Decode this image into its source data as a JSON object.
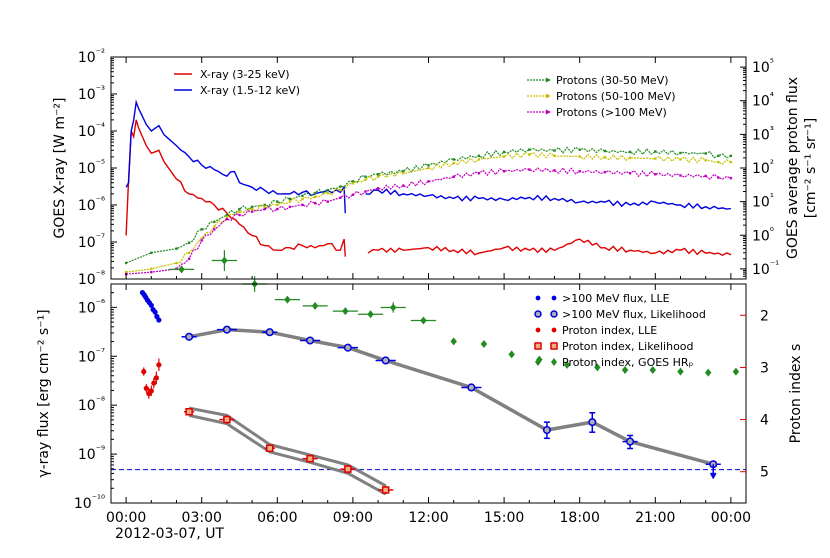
{
  "chart_data": [
    {
      "type": "line",
      "panel": "top",
      "ylabel": "GOES X-ray [W m⁻²]",
      "ylabel_right_line1": "GOES average proton flux",
      "ylabel_right_line2": "[cm⁻² s⁻¹ sr⁻¹]",
      "yscale": "log",
      "ylim": [
        1e-08,
        0.01
      ],
      "y2lim": [
        0.05,
        200000
      ],
      "left_ticks": [
        "10⁻⁸",
        "10⁻⁷",
        "10⁻⁶",
        "10⁻⁵",
        "10⁻⁴",
        "10⁻³",
        "10⁻²"
      ],
      "left_tick_exp": [
        -8,
        -7,
        -6,
        -5,
        -4,
        -3,
        -2
      ],
      "right_ticks": [
        "10⁻¹",
        "10⁰",
        "10¹",
        "10²",
        "10³",
        "10⁴",
        "10⁵"
      ],
      "right_tick_exp": [
        -1,
        0,
        1,
        2,
        3,
        4,
        5
      ],
      "legend_left": [
        "X-ray (3-25 keV)",
        "X-ray (1.5-12 keV)"
      ],
      "legend_right": [
        "Protons (30-50 MeV)",
        "Protons (50-100 MeV)",
        "Protons (>100 MeV)"
      ],
      "series": [
        {
          "name": "X-ray (3-25 keV)",
          "color": "#e00000",
          "axis": "left",
          "x": [
            0,
            0.1,
            0.2,
            0.3,
            0.4,
            0.5,
            0.8,
            1,
            1.3,
            1.5,
            2,
            2.5,
            3,
            3.5,
            4,
            4.5,
            5,
            5.5,
            6,
            6.5,
            7,
            7.5,
            8,
            8.5,
            8.65,
            8.7,
            8.75,
            9,
            9.6,
            10,
            11,
            12,
            13,
            14,
            15,
            16,
            17,
            18,
            19,
            20,
            21,
            22,
            23,
            23.5,
            24
          ],
          "y": [
            1.5e-07,
            5e-06,
            0.0001,
            7e-05,
            0.0002,
            0.00012,
            4e-05,
            2.5e-05,
            3e-05,
            1.5e-05,
            5e-06,
            2e-06,
            1.5e-06,
            1e-06,
            6e-07,
            3e-07,
            1.5e-07,
            8e-08,
            6e-08,
            7e-08,
            8e-08,
            7e-08,
            9e-08,
            6e-08,
            1.2e-07,
            4e-08,
            null,
            null,
            5e-08,
            6e-08,
            6e-08,
            7e-08,
            6e-08,
            5e-08,
            7e-08,
            6e-08,
            6e-08,
            1.2e-07,
            7e-08,
            6e-08,
            5e-08,
            6e-08,
            5e-08,
            5e-08,
            4.5e-08
          ]
        },
        {
          "name": "X-ray (1.5-12 keV)",
          "color": "#0000e0",
          "axis": "left",
          "x": [
            0,
            0.1,
            0.2,
            0.3,
            0.4,
            0.5,
            0.8,
            1,
            1.3,
            1.5,
            2,
            2.5,
            3,
            3.5,
            4,
            4.3,
            4.5,
            5,
            5.5,
            6,
            6.5,
            7,
            7.5,
            8,
            8.5,
            8.65,
            8.7,
            8.75,
            9,
            9.5,
            10,
            11,
            12,
            13,
            14,
            15,
            16,
            17,
            18,
            19,
            20,
            21,
            22,
            23,
            23.5,
            24
          ],
          "y": [
            3e-06,
            4e-06,
            0.0001,
            0.0002,
            0.0006,
            0.0004,
            0.00015,
            0.0001,
            0.00014,
            8e-05,
            4e-05,
            2e-05,
            1.2e-05,
            9e-06,
            6e-06,
            8e-06,
            4e-06,
            3e-06,
            2.5e-06,
            2e-06,
            2e-06,
            2.2e-06,
            2e-06,
            2.5e-06,
            2.2e-06,
            3e-06,
            6e-07,
            null,
            null,
            2e-06,
            2.5e-06,
            2e-06,
            1.8e-06,
            1.5e-06,
            1.5e-06,
            1.4e-06,
            1.6e-06,
            1.5e-06,
            1.2e-06,
            1.2e-06,
            1e-06,
            1.2e-06,
            1e-06,
            9e-07,
            8e-07,
            8e-07
          ]
        },
        {
          "name": "Protons (30-50 MeV)",
          "color": "#228b22",
          "axis": "right",
          "x": [
            0,
            1,
            2,
            2.5,
            3,
            3.5,
            4,
            4.5,
            5,
            5.5,
            6,
            6.5,
            7,
            7.5,
            8,
            8.5,
            9,
            9.5,
            10,
            11,
            12,
            13,
            14,
            15,
            16,
            17,
            18,
            19,
            20,
            21,
            22,
            23,
            23.5,
            24
          ],
          "y": [
            0.15,
            0.3,
            0.4,
            0.6,
            1.5,
            2.5,
            4,
            6,
            7,
            8,
            10,
            12,
            15,
            18,
            22,
            28,
            40,
            55,
            65,
            80,
            120,
            180,
            230,
            300,
            350,
            330,
            350,
            320,
            300,
            310,
            280,
            270,
            230,
            230
          ]
        },
        {
          "name": "Protons (50-100 MeV)",
          "color": "#c8c000",
          "axis": "right",
          "x": [
            0,
            1,
            2,
            2.5,
            3,
            3.5,
            4,
            4.5,
            5,
            5.5,
            6,
            6.5,
            7,
            7.5,
            8,
            8.5,
            9,
            9.5,
            10,
            11,
            12,
            13,
            14,
            15,
            16,
            17,
            18,
            19,
            20,
            21,
            22,
            23,
            23.5,
            24
          ],
          "y": [
            0.08,
            0.1,
            0.15,
            0.3,
            0.8,
            1.8,
            3.5,
            5,
            6,
            7,
            8,
            10,
            12,
            14,
            18,
            22,
            35,
            45,
            55,
            70,
            100,
            140,
            180,
            220,
            250,
            230,
            220,
            210,
            200,
            190,
            180,
            170,
            150,
            150
          ]
        },
        {
          "name": "Protons (>100 MeV)",
          "color": "#c000c0",
          "axis": "right",
          "x": [
            0,
            1,
            2,
            2.5,
            3,
            3.5,
            4,
            4.5,
            5,
            5.5,
            6,
            6.5,
            7,
            7.5,
            8,
            8.5,
            9,
            9.5,
            10,
            11,
            12,
            13,
            14,
            15,
            16,
            17,
            18,
            19,
            20,
            21,
            22,
            23,
            23.5,
            24
          ],
          "y": [
            0.07,
            0.08,
            0.1,
            0.2,
            0.7,
            1.5,
            3,
            4,
            5,
            6,
            6,
            7,
            8,
            9,
            10,
            13,
            16,
            20,
            25,
            30,
            40,
            55,
            70,
            80,
            90,
            85,
            80,
            75,
            70,
            65,
            60,
            58,
            52,
            50
          ]
        }
      ]
    },
    {
      "type": "scatter",
      "panel": "bottom",
      "xlabel": "2012-03-07, UT",
      "ylabel": "γ-ray flux [erg cm⁻² s⁻¹]",
      "ylabel_right": "Proton index s",
      "yscale": "log",
      "ylim": [
        1e-10,
        3e-06
      ],
      "x_tick_hours": [
        0,
        3,
        6,
        9,
        12,
        15,
        18,
        21,
        24
      ],
      "x_tick_labels": [
        "00:00",
        "03:00",
        "06:00",
        "09:00",
        "12:00",
        "15:00",
        "18:00",
        "21:00",
        "00:00"
      ],
      "left_ticks": [
        "10⁻¹⁰",
        "10⁻⁹",
        "10⁻⁸",
        "10⁻⁷",
        "10⁻⁶"
      ],
      "left_tick_exp": [
        -10,
        -9,
        -8,
        -7,
        -6
      ],
      "right_ticks": [
        "2",
        "3",
        "4",
        "5"
      ],
      "right_tick_values": [
        2,
        3,
        4,
        5
      ],
      "right_lim": [
        1.4,
        5.6
      ],
      "dashed_line_flux": 4.8e-10,
      "dashed_color": "#0000e0",
      "legend": [
        ">100 MeV flux, LLE",
        ">100 MeV flux, Likelihood",
        "Proton index, LLE",
        "Proton index, Likelihood",
        "Proton index, GOES HRₚ"
      ],
      "lle_flux": {
        "color": "#0000e0",
        "x": [
          0.65,
          0.72,
          0.78,
          0.85,
          0.92,
          1.0,
          1.07,
          1.15,
          1.22,
          1.3
        ],
        "y": [
          2e-06,
          1.8e-06,
          1.6e-06,
          1.4e-06,
          1.25e-06,
          1.1e-06,
          9e-07,
          8e-07,
          6.5e-07,
          5.5e-07
        ]
      },
      "likelihood_flux": {
        "color": "#0000e0",
        "x": [
          2.5,
          4.0,
          5.7,
          7.3,
          8.8,
          10.3,
          13.7,
          16.7,
          18.5,
          20.0,
          23.3
        ],
        "y": [
          2.5e-07,
          3.5e-07,
          3.1e-07,
          2.1e-07,
          1.5e-07,
          8.2e-08,
          2.3e-08,
          3.1e-09,
          4.5e-09,
          1.8e-09,
          6.2e-10
        ],
        "x_half_width": [
          0.3,
          0.4,
          0.3,
          0.4,
          0.4,
          0.4,
          0.4,
          0,
          0,
          0.3,
          0.3
        ],
        "y_low": [
          2.5e-07,
          3.5e-07,
          3.1e-07,
          2.1e-07,
          1.5e-07,
          8.2e-08,
          2.3e-08,
          2.1e-09,
          2.8e-09,
          1.3e-09,
          4e-10
        ],
        "y_high": [
          2.5e-07,
          3.5e-07,
          3.1e-07,
          2.1e-07,
          1.5e-07,
          8.2e-08,
          2.3e-08,
          4.5e-09,
          7e-09,
          2.4e-09,
          6.2e-10
        ]
      },
      "lle_index": {
        "color": "#e00000",
        "x": [
          0.7,
          0.8,
          0.9,
          1.0,
          1.1,
          1.2,
          1.3
        ],
        "s": [
          3.08,
          3.4,
          3.5,
          3.45,
          3.3,
          3.2,
          2.95
        ],
        "s_err": [
          0.08,
          0.08,
          0.1,
          0.1,
          0.1,
          0.12,
          0.12
        ]
      },
      "likelihood_index": {
        "color": "#e00000",
        "x": [
          2.5,
          4.0,
          5.7,
          7.3,
          8.8,
          10.3
        ],
        "s": [
          3.85,
          4.0,
          4.55,
          4.75,
          4.95,
          5.35
        ],
        "x_half_width": [
          0.2,
          0.3,
          0.2,
          0.3,
          0.3,
          0.3
        ],
        "s_err": [
          0.07,
          0.08,
          0.07,
          0.07,
          0.08,
          0.08
        ]
      },
      "goes_index": {
        "color": "#228b22",
        "x": [
          2.2,
          3.9,
          5.1,
          6.4,
          7.5,
          8.7,
          9.7,
          10.6,
          11.8,
          13.0,
          14.2,
          15.3,
          16.4,
          17.5,
          18.7,
          19.8,
          20.9,
          22.0,
          23.1,
          24.2
        ],
        "s": [
          1.12,
          0.95,
          1.4,
          1.7,
          1.82,
          1.92,
          1.98,
          1.85,
          2.1,
          2.5,
          2.55,
          2.75,
          2.85,
          2.95,
          3.0,
          3.05,
          3.05,
          3.08,
          3.1,
          3.08
        ],
        "x_half_width": [
          0.5,
          0.5,
          0.5,
          0.5,
          0.5,
          0.5,
          0.5,
          0.5,
          0.5,
          0,
          0,
          0,
          0,
          0,
          0,
          0,
          0,
          0,
          0,
          0
        ],
        "s_err": [
          0,
          0.2,
          0.15,
          0,
          0,
          0,
          0,
          0.1,
          0,
          0,
          0,
          0,
          0,
          0,
          0,
          0,
          0,
          0,
          0,
          0
        ]
      }
    }
  ]
}
